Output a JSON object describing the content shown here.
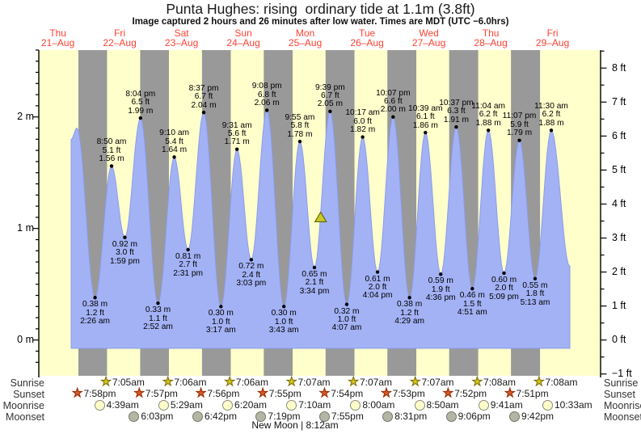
{
  "title": "Punta Hughes: rising  ordinary tide at 1.1m (3.8ft)",
  "subtitle": "Image captured 2 hours and 26 minutes after low water. Times are MDT (UTC −6.0hrs)",
  "colors": {
    "day_band": "#ffffcc",
    "night_band": "#999999",
    "tide_fill": "#a3b2f5",
    "tide_edge": "#8a9cec",
    "day_label": "#ff4233",
    "axis": "#000000",
    "now_marker_fill": "#c9c92e",
    "now_marker_edge": "#6b6b00"
  },
  "chart_data": {
    "type": "area",
    "title": "Punta Hughes: rising ordinary tide at 1.1m (3.8ft)",
    "ylabel_left_unit": "m",
    "ylabel_right_unit": "ft",
    "ylim_m": [
      -0.33,
      2.6
    ],
    "y_ticks_left": [
      {
        "v": 0,
        "label": "0 m"
      },
      {
        "v": 1,
        "label": "1 m"
      },
      {
        "v": 2,
        "label": "2 m"
      }
    ],
    "y_ticks_right": [
      {
        "v": -1,
        "label": "−1 ft"
      },
      {
        "v": 0,
        "label": "0 ft"
      },
      {
        "v": 1,
        "label": "1 ft"
      },
      {
        "v": 2,
        "label": "2 ft"
      },
      {
        "v": 3,
        "label": "3 ft"
      },
      {
        "v": 4,
        "label": "4 ft"
      },
      {
        "v": 5,
        "label": "5 ft"
      },
      {
        "v": 6,
        "label": "6 ft"
      },
      {
        "v": 7,
        "label": "7 ft"
      },
      {
        "v": 8,
        "label": "8 ft"
      }
    ],
    "days": [
      {
        "name": "Thu",
        "date": "21–Aug",
        "t_noon": 12
      },
      {
        "name": "Fri",
        "date": "22–Aug",
        "t_noon": 36
      },
      {
        "name": "Sat",
        "date": "23–Aug",
        "t_noon": 60
      },
      {
        "name": "Sun",
        "date": "24–Aug",
        "t_noon": 84
      },
      {
        "name": "Mon",
        "date": "25–Aug",
        "t_noon": 108
      },
      {
        "name": "Tue",
        "date": "26–Aug",
        "t_noon": 132
      },
      {
        "name": "Wed",
        "date": "27–Aug",
        "t_noon": 156
      },
      {
        "name": "Thu",
        "date": "28–Aug",
        "t_noon": 180
      },
      {
        "name": "Fri",
        "date": "29–Aug",
        "t_noon": 204
      }
    ],
    "now_marker": {
      "t": 114.0,
      "height_m": 1.1
    },
    "night_bands": [
      [
        19.967,
        31.083
      ],
      [
        43.95,
        55.1
      ],
      [
        67.933,
        79.1
      ],
      [
        91.917,
        103.117
      ],
      [
        115.9,
        127.117
      ],
      [
        139.883,
        151.117
      ],
      [
        163.867,
        175.133
      ],
      [
        187.85,
        199.133
      ]
    ],
    "curve": [
      {
        "kind": "edge",
        "t": 17.14,
        "h": 1.8
      },
      {
        "kind": "high_unlabeled",
        "t": 19.4,
        "h": 1.9
      },
      {
        "kind": "low",
        "t": 26.433,
        "h": 0.38,
        "lines": [
          "0.38 m",
          "1.2 ft",
          "2:26 am"
        ]
      },
      {
        "kind": "high",
        "t": 32.833,
        "h": 1.56,
        "lines": [
          "8:50 am",
          "5.1 ft",
          "1.56 m"
        ]
      },
      {
        "kind": "low",
        "t": 37.983,
        "h": 0.92,
        "lines": [
          "0.92 m",
          "3.0 ft",
          "1:59 pm"
        ]
      },
      {
        "kind": "high",
        "t": 44.067,
        "h": 1.99,
        "lines": [
          "8:04 pm",
          "6.5 ft",
          "1.99 m"
        ]
      },
      {
        "kind": "low",
        "t": 50.867,
        "h": 0.33,
        "lines": [
          "0.33 m",
          "1.1 ft",
          "2:52 am"
        ]
      },
      {
        "kind": "high",
        "t": 57.167,
        "h": 1.64,
        "lines": [
          "9:10 am",
          "5.4 ft",
          "1.64 m"
        ]
      },
      {
        "kind": "low",
        "t": 62.517,
        "h": 0.81,
        "lines": [
          "0.81 m",
          "2.7 ft",
          "2:31 pm"
        ]
      },
      {
        "kind": "high",
        "t": 68.617,
        "h": 2.04,
        "lines": [
          "8:37 pm",
          "6.7 ft",
          "2.04 m"
        ]
      },
      {
        "kind": "low",
        "t": 75.283,
        "h": 0.3,
        "lines": [
          "0.30 m",
          "1.0 ft",
          "3:17 am"
        ]
      },
      {
        "kind": "high",
        "t": 81.517,
        "h": 1.71,
        "lines": [
          "9:31 am",
          "5.6 ft",
          "1.71 m"
        ]
      },
      {
        "kind": "low",
        "t": 87.05,
        "h": 0.72,
        "lines": [
          "0.72 m",
          "2.4 ft",
          "3:03 pm"
        ]
      },
      {
        "kind": "high",
        "t": 93.133,
        "h": 2.06,
        "lines": [
          "9:08 pm",
          "6.8 ft",
          "2.06 m"
        ]
      },
      {
        "kind": "low",
        "t": 99.717,
        "h": 0.3,
        "lines": [
          "0.30 m",
          "1.0 ft",
          "3:43 am"
        ]
      },
      {
        "kind": "high",
        "t": 105.917,
        "h": 1.78,
        "lines": [
          "9:55 am",
          "5.8 ft",
          "1.78 m"
        ]
      },
      {
        "kind": "low",
        "t": 111.567,
        "h": 0.65,
        "lines": [
          "0.65 m",
          "2.1 ft",
          "3:34 pm"
        ]
      },
      {
        "kind": "high",
        "t": 117.65,
        "h": 2.05,
        "lines": [
          "9:39 pm",
          "6.7 ft",
          "2.05 m"
        ]
      },
      {
        "kind": "low",
        "t": 124.117,
        "h": 0.32,
        "lines": [
          "0.32 m",
          "1.0 ft",
          "4:07 am"
        ]
      },
      {
        "kind": "high",
        "t": 130.283,
        "h": 1.82,
        "lines": [
          "10:17 am",
          "6.0 ft",
          "1.82 m"
        ]
      },
      {
        "kind": "low",
        "t": 136.067,
        "h": 0.61,
        "lines": [
          "0.61 m",
          "2.0 ft",
          "4:04 pm"
        ]
      },
      {
        "kind": "high",
        "t": 142.117,
        "h": 2.0,
        "lines": [
          "10:07 pm",
          "6.6 ft",
          "2.00 m"
        ]
      },
      {
        "kind": "low",
        "t": 148.483,
        "h": 0.38,
        "lines": [
          "0.38 m",
          "1.2 ft",
          "4:29 am"
        ]
      },
      {
        "kind": "high",
        "t": 154.65,
        "h": 1.86,
        "lines": [
          "10:39 am",
          "6.1 ft",
          "1.86 m"
        ]
      },
      {
        "kind": "low",
        "t": 160.6,
        "h": 0.59,
        "lines": [
          "0.59 m",
          "1.9 ft",
          "4:36 pm"
        ]
      },
      {
        "kind": "high",
        "t": 166.617,
        "h": 1.91,
        "lines": [
          "10:37 pm",
          "6.3 ft",
          "1.91 m"
        ]
      },
      {
        "kind": "low",
        "t": 172.85,
        "h": 0.46,
        "lines": [
          "0.46 m",
          "1.5 ft",
          "4:51 am"
        ]
      },
      {
        "kind": "high",
        "t": 179.067,
        "h": 1.88,
        "lines": [
          "11:04 am",
          "6.2 ft",
          "1.88 m"
        ]
      },
      {
        "kind": "low",
        "t": 185.15,
        "h": 0.6,
        "lines": [
          "0.60 m",
          "2.0 ft",
          "5:09 pm"
        ]
      },
      {
        "kind": "high",
        "t": 191.117,
        "h": 1.79,
        "lines": [
          "11:07 pm",
          "5.9 ft",
          "1.79 m"
        ]
      },
      {
        "kind": "low",
        "t": 197.217,
        "h": 0.55,
        "lines": [
          "0.55 m",
          "1.8 ft",
          "5:13 am"
        ]
      },
      {
        "kind": "high",
        "t": 203.5,
        "h": 1.88,
        "lines": [
          "11:30 am",
          "6.2 ft",
          "1.88 m"
        ]
      },
      {
        "kind": "edge",
        "t": 210.7,
        "h": 0.66
      }
    ]
  },
  "astro": {
    "row_labels": [
      "Sunrise",
      "Sunset",
      "Moonrise",
      "Moonset"
    ],
    "sunrise": [
      {
        "time": "7:05am",
        "t": 31.083
      },
      {
        "time": "7:06am",
        "t": 55.1
      },
      {
        "time": "7:06am",
        "t": 79.1
      },
      {
        "time": "7:07am",
        "t": 103.117
      },
      {
        "time": "7:07am",
        "t": 127.117
      },
      {
        "time": "7:07am",
        "t": 151.117
      },
      {
        "time": "7:08am",
        "t": 175.133
      },
      {
        "time": "7:08am",
        "t": 199.133
      }
    ],
    "sunset": [
      {
        "time": "7:58pm",
        "t": 19.967
      },
      {
        "time": "7:57pm",
        "t": 43.95
      },
      {
        "time": "7:56pm",
        "t": 67.933
      },
      {
        "time": "7:55pm",
        "t": 91.917
      },
      {
        "time": "7:54pm",
        "t": 115.9
      },
      {
        "time": "7:53pm",
        "t": 139.883
      },
      {
        "time": "7:52pm",
        "t": 163.867
      },
      {
        "time": "7:51pm",
        "t": 187.85
      }
    ],
    "moonrise": [
      {
        "time": "4:39am",
        "t": 28.65
      },
      {
        "time": "5:29am",
        "t": 53.483
      },
      {
        "time": "6:20am",
        "t": 78.333
      },
      {
        "time": "7:10am",
        "t": 103.167
      },
      {
        "time": "8:00am",
        "t": 128.0
      },
      {
        "time": "8:50am",
        "t": 152.833
      },
      {
        "time": "9:41am",
        "t": 177.683
      },
      {
        "time": "10:33am",
        "t": 202.55
      }
    ],
    "moonset": [
      {
        "time": "6:03pm",
        "t": 42.05
      },
      {
        "time": "6:42pm",
        "t": 66.7
      },
      {
        "time": "7:19pm",
        "t": 91.317
      },
      {
        "time": "7:55pm",
        "t": 115.917
      },
      {
        "time": "8:31pm",
        "t": 140.517
      },
      {
        "time": "9:06pm",
        "t": 165.1
      },
      {
        "time": "9:42pm",
        "t": 189.7
      }
    ],
    "new_moon": "New Moon | 8:12am"
  }
}
